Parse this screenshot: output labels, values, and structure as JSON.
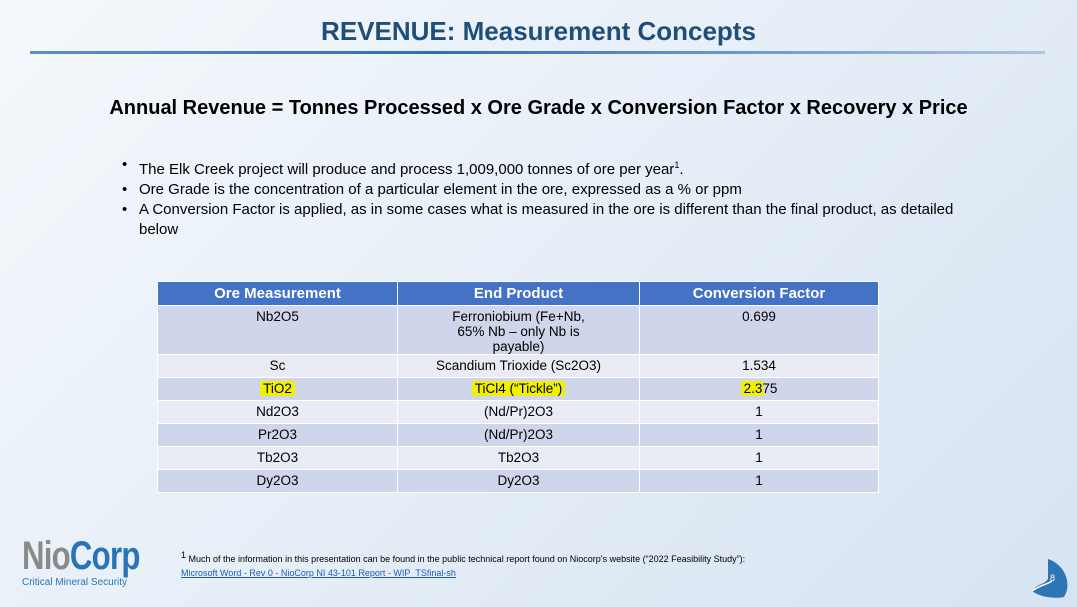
{
  "title": "REVENUE:  Measurement Concepts",
  "formula": "Annual Revenue = Tonnes Processed x Ore Grade x Conversion Factor x Recovery x Price",
  "bullets": [
    "The Elk Creek project will produce and process 1,009,000 tonnes of ore per year",
    "Ore Grade is the concentration of a particular element in the ore, expressed as a % or ppm",
    "A Conversion Factor is applied, as in some cases what is measured in the ore is different than the final product, as detailed below"
  ],
  "bullet_sup": "1",
  "table": {
    "headers": [
      "Ore Measurement",
      "End Product",
      "Conversion Factor"
    ],
    "rows": [
      [
        "Nb2O5",
        "Ferroniobium (Fe+Nb, 65% Nb – only Nb is payable)",
        "0.699"
      ],
      [
        "Sc",
        "Scandium Trioxide (Sc2O3)",
        "1.534"
      ],
      [
        "TiO2",
        "TiCl4 (“Tickle”)",
        "2.375"
      ],
      [
        "Nd2O3",
        "(Nd/Pr)2O3",
        "1"
      ],
      [
        "Pr2O3",
        "(Nd/Pr)2O3",
        "1"
      ],
      [
        "Tb2O3",
        "Tb2O3",
        "1"
      ],
      [
        "Dy2O3",
        "Dy2O3",
        "1"
      ]
    ],
    "highlight_color": "#f0f000"
  },
  "logo": {
    "name": "NioCorp",
    "tagline": "Critical Mineral Security"
  },
  "footnote": {
    "marker": "1",
    "text": " Much of the information in this presentation can be found in the public technical report found on Niocorp’s website (“2022 Feasibility Study”):",
    "link": "Microsoft Word - Rev 0 - NioCorp NI 43-101 Report - WIP_TSfinal-sh"
  },
  "page_number": "8"
}
